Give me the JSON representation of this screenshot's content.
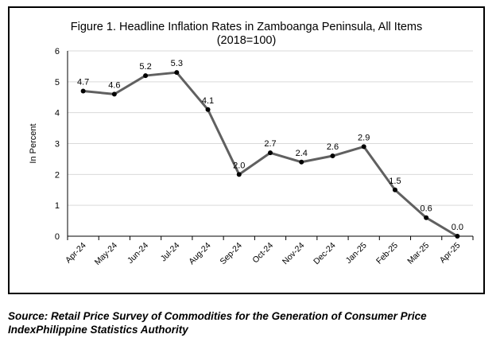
{
  "chart_data": {
    "type": "line",
    "title": "Figure 1. Headline Inflation Rates in Zamboanga Peninsula, All Items",
    "subtitle": "(2018=100)",
    "xlabel": "",
    "ylabel": "In Percent",
    "categories": [
      "Apr-24",
      "May-24",
      "Jun-24",
      "Jul-24",
      "Aug-24",
      "Sep-24",
      "Oct-24",
      "Nov-24",
      "Dec-24",
      "Jan-25",
      "Feb-25",
      "Mar-25",
      "Apr-25"
    ],
    "values": [
      4.7,
      4.6,
      5.2,
      5.3,
      4.1,
      2.0,
      2.7,
      2.4,
      2.6,
      2.9,
      1.5,
      0.6,
      0.0
    ],
    "data_labels": [
      "4.7",
      "4.6",
      "5.2",
      "5.3",
      "4.1",
      "2.0",
      "2.7",
      "2.4",
      "2.6",
      "2.9",
      "1.5",
      "0.6",
      "0.0"
    ],
    "y_ticks": [
      "0",
      "1",
      "2",
      "3",
      "4",
      "5",
      "6"
    ],
    "ylim": [
      0,
      6
    ],
    "grid": true,
    "line_color": "#606060",
    "marker_color": "#000000"
  },
  "source": {
    "line1": "Source: Retail Price Survey of Commodities for the Generation of Consumer Price",
    "line2": "IndexPhilippine Statistics Authority"
  }
}
